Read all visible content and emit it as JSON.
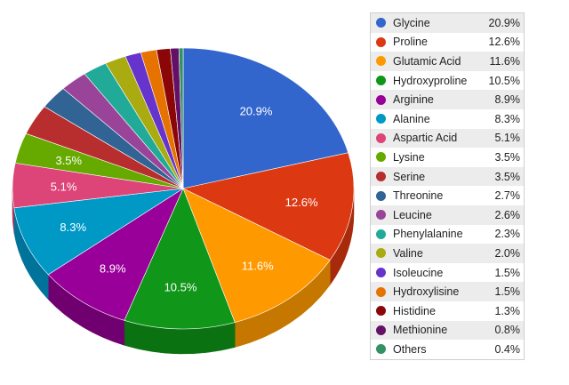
{
  "chart_data": {
    "type": "pie",
    "style": "3d",
    "legend_position": "right",
    "slices": [
      {
        "label": "Glycine",
        "value": 20.9,
        "display": "20.9%",
        "color": "#3366cc",
        "side": "#2650a3",
        "show_label": true
      },
      {
        "label": "Proline",
        "value": 12.6,
        "display": "12.6%",
        "color": "#dc3912",
        "side": "#a82a0c",
        "show_label": true
      },
      {
        "label": "Glutamic Acid",
        "value": 11.6,
        "display": "11.6%",
        "color": "#ff9900",
        "side": "#c57700",
        "show_label": true
      },
      {
        "label": "Hydroxyproline",
        "value": 10.5,
        "display": "10.5%",
        "color": "#109618",
        "side": "#0b7212",
        "show_label": true
      },
      {
        "label": "Arginine",
        "value": 8.9,
        "display": "8.9%",
        "color": "#990099",
        "side": "#700070",
        "show_label": true
      },
      {
        "label": "Alanine",
        "value": 8.3,
        "display": "8.3%",
        "color": "#0099c6",
        "side": "#00739a",
        "show_label": true
      },
      {
        "label": "Aspartic Acid",
        "value": 5.1,
        "display": "5.1%",
        "color": "#dd4477",
        "side": "#aa3259",
        "show_label": true
      },
      {
        "label": "Lysine",
        "value": 3.5,
        "display": "3.5%",
        "color": "#66aa00",
        "side": "#4d8000",
        "show_label": true
      },
      {
        "label": "Serine",
        "value": 3.5,
        "display": "3.5%",
        "color": "#b82e2e",
        "side": "#8c2222",
        "show_label": false
      },
      {
        "label": "Threonine",
        "value": 2.7,
        "display": "2.7%",
        "color": "#316395",
        "side": "#244a70",
        "show_label": false
      },
      {
        "label": "Leucine",
        "value": 2.6,
        "display": "2.6%",
        "color": "#994499",
        "side": "#733373",
        "show_label": false
      },
      {
        "label": "Phenylalanine",
        "value": 2.3,
        "display": "2.3%",
        "color": "#22aa99",
        "side": "#198073",
        "show_label": false
      },
      {
        "label": "Valine",
        "value": 2.0,
        "display": "2.0%",
        "color": "#aaaa11",
        "side": "#80800c",
        "show_label": false
      },
      {
        "label": "Isoleucine",
        "value": 1.5,
        "display": "1.5%",
        "color": "#6633cc",
        "side": "#4c2699",
        "show_label": false
      },
      {
        "label": "Hydroxylisine",
        "value": 1.5,
        "display": "1.5%",
        "color": "#e67300",
        "side": "#ad5600",
        "show_label": false
      },
      {
        "label": "Histidine",
        "value": 1.3,
        "display": "1.3%",
        "color": "#8b0707",
        "side": "#650505",
        "show_label": false
      },
      {
        "label": "Methionine",
        "value": 0.8,
        "display": "0.8%",
        "color": "#651067",
        "side": "#4a0b4b",
        "show_label": false
      },
      {
        "label": "Others",
        "value": 0.4,
        "display": "0.4%",
        "color": "#329262",
        "side": "#246b48",
        "show_label": false
      }
    ]
  }
}
